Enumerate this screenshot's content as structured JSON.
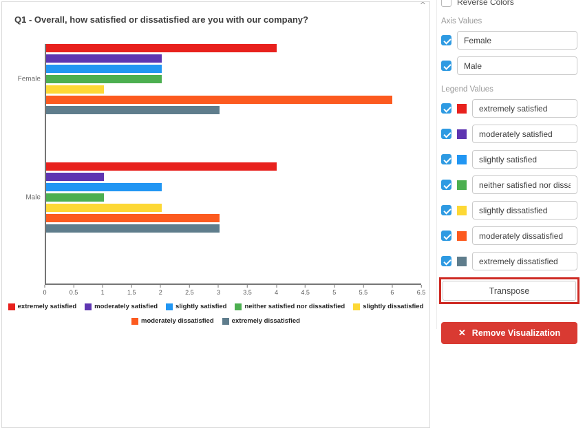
{
  "chart_card": {
    "title": "Q1 - Overall, how satisfied or dissatisfied are you with our company?",
    "close_icon": "✕"
  },
  "chart_data": {
    "type": "bar",
    "orientation": "horizontal",
    "title": "Q1 - Overall, how satisfied or dissatisfied are you with our company?",
    "categories": [
      "Female",
      "Male"
    ],
    "series": [
      {
        "name": "extremely satisfied",
        "color": "#e8211d",
        "values": [
          4,
          4
        ]
      },
      {
        "name": "moderately satisfied",
        "color": "#5e35b1",
        "values": [
          2,
          1
        ]
      },
      {
        "name": "slightly satisfied",
        "color": "#2196f3",
        "values": [
          2,
          2
        ]
      },
      {
        "name": "neither satisfied nor dissatisfied",
        "color": "#4caf50",
        "values": [
          2,
          1
        ]
      },
      {
        "name": "slightly dissatisfied",
        "color": "#fdd835",
        "values": [
          1,
          2
        ]
      },
      {
        "name": "moderately dissatisfied",
        "color": "#fc5a1f",
        "values": [
          6,
          3
        ]
      },
      {
        "name": "extremely dissatisfied",
        "color": "#5f7d8c",
        "values": [
          3,
          3
        ]
      }
    ],
    "xlim": [
      0,
      6.5
    ],
    "x_tick_labels": [
      "0",
      "0.5",
      "1",
      "1.5",
      "2",
      "2.5",
      "3",
      "3.5",
      "4",
      "4.5",
      "5",
      "5.5",
      "6",
      "6.5"
    ],
    "grid": false,
    "legend_position": "bottom",
    "legend_break": 5
  },
  "panel": {
    "reverse_colors": {
      "label": "Reverse Colors",
      "checked": false
    },
    "axis_values": {
      "label": "Axis Values",
      "items": [
        {
          "value": "Female",
          "checked": true
        },
        {
          "value": "Male",
          "checked": true
        }
      ]
    },
    "legend_values": {
      "label": "Legend Values",
      "items": [
        {
          "value": "extremely satisfied",
          "color": "#e8211d",
          "checked": true
        },
        {
          "value": "moderately satisfied",
          "color": "#5e35b1",
          "checked": true
        },
        {
          "value": "slightly satisfied",
          "color": "#2196f3",
          "checked": true
        },
        {
          "value": "neither satisfied nor dissatisfied",
          "color": "#4caf50",
          "checked": true
        },
        {
          "value": "slightly dissatisfied",
          "color": "#fdd835",
          "checked": true
        },
        {
          "value": "moderately dissatisfied",
          "color": "#fc5a1f",
          "checked": true
        },
        {
          "value": "extremely dissatisfied",
          "color": "#5f7d8c",
          "checked": true
        }
      ]
    },
    "transpose_label": "Transpose",
    "remove_label": "Remove Visualization",
    "remove_icon": "✕"
  }
}
